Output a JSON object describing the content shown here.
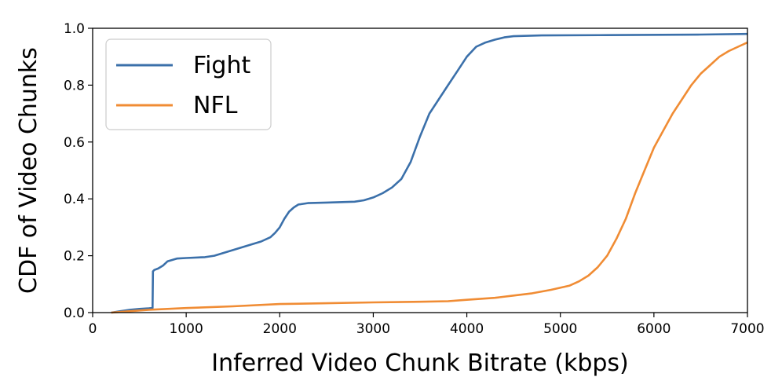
{
  "chart_data": {
    "type": "line",
    "title": "",
    "xlabel": "Inferred Video Chunk Bitrate (kbps)",
    "ylabel": "CDF of Video Chunks",
    "xlim": [
      0,
      7000
    ],
    "ylim": [
      0,
      1.0
    ],
    "xticks": [
      "0",
      "1000",
      "2000",
      "3000",
      "4000",
      "5000",
      "6000",
      "7000"
    ],
    "yticks": [
      "0.0",
      "0.2",
      "0.4",
      "0.6",
      "0.8",
      "1.0"
    ],
    "grid": false,
    "legend_position": "top-left",
    "series": [
      {
        "name": "Fight",
        "color": "#3b70aa",
        "x": [
          200,
          300,
          400,
          500,
          600,
          640,
          645,
          660,
          700,
          750,
          800,
          900,
          1000,
          1200,
          1300,
          1400,
          1500,
          1600,
          1700,
          1800,
          1900,
          1950,
          2000,
          2050,
          2100,
          2150,
          2200,
          2300,
          2500,
          2800,
          2900,
          3000,
          3100,
          3200,
          3300,
          3400,
          3500,
          3600,
          3700,
          3800,
          3900,
          4000,
          4100,
          4200,
          4300,
          4400,
          4500,
          4800,
          5500,
          6500,
          7000
        ],
        "y": [
          0.0,
          0.005,
          0.01,
          0.013,
          0.015,
          0.016,
          0.145,
          0.15,
          0.155,
          0.165,
          0.18,
          0.19,
          0.192,
          0.195,
          0.2,
          0.21,
          0.22,
          0.23,
          0.24,
          0.25,
          0.265,
          0.28,
          0.3,
          0.33,
          0.355,
          0.37,
          0.38,
          0.385,
          0.387,
          0.39,
          0.395,
          0.405,
          0.42,
          0.44,
          0.47,
          0.53,
          0.62,
          0.7,
          0.75,
          0.8,
          0.85,
          0.9,
          0.935,
          0.95,
          0.96,
          0.968,
          0.972,
          0.975,
          0.976,
          0.978,
          0.98
        ]
      },
      {
        "name": "NFL",
        "color": "#f08c34",
        "x": [
          200,
          400,
          600,
          800,
          1000,
          1500,
          2000,
          2500,
          3000,
          3500,
          3800,
          4000,
          4300,
          4500,
          4700,
          4900,
          5100,
          5200,
          5300,
          5400,
          5500,
          5600,
          5700,
          5800,
          5900,
          6000,
          6100,
          6200,
          6300,
          6400,
          6500,
          6600,
          6700,
          6800,
          6900,
          7000
        ],
        "y": [
          0.0,
          0.005,
          0.01,
          0.013,
          0.016,
          0.022,
          0.03,
          0.033,
          0.036,
          0.038,
          0.04,
          0.045,
          0.052,
          0.06,
          0.068,
          0.08,
          0.095,
          0.11,
          0.13,
          0.16,
          0.2,
          0.26,
          0.33,
          0.42,
          0.5,
          0.58,
          0.64,
          0.7,
          0.75,
          0.8,
          0.84,
          0.87,
          0.9,
          0.92,
          0.935,
          0.95
        ]
      }
    ]
  }
}
